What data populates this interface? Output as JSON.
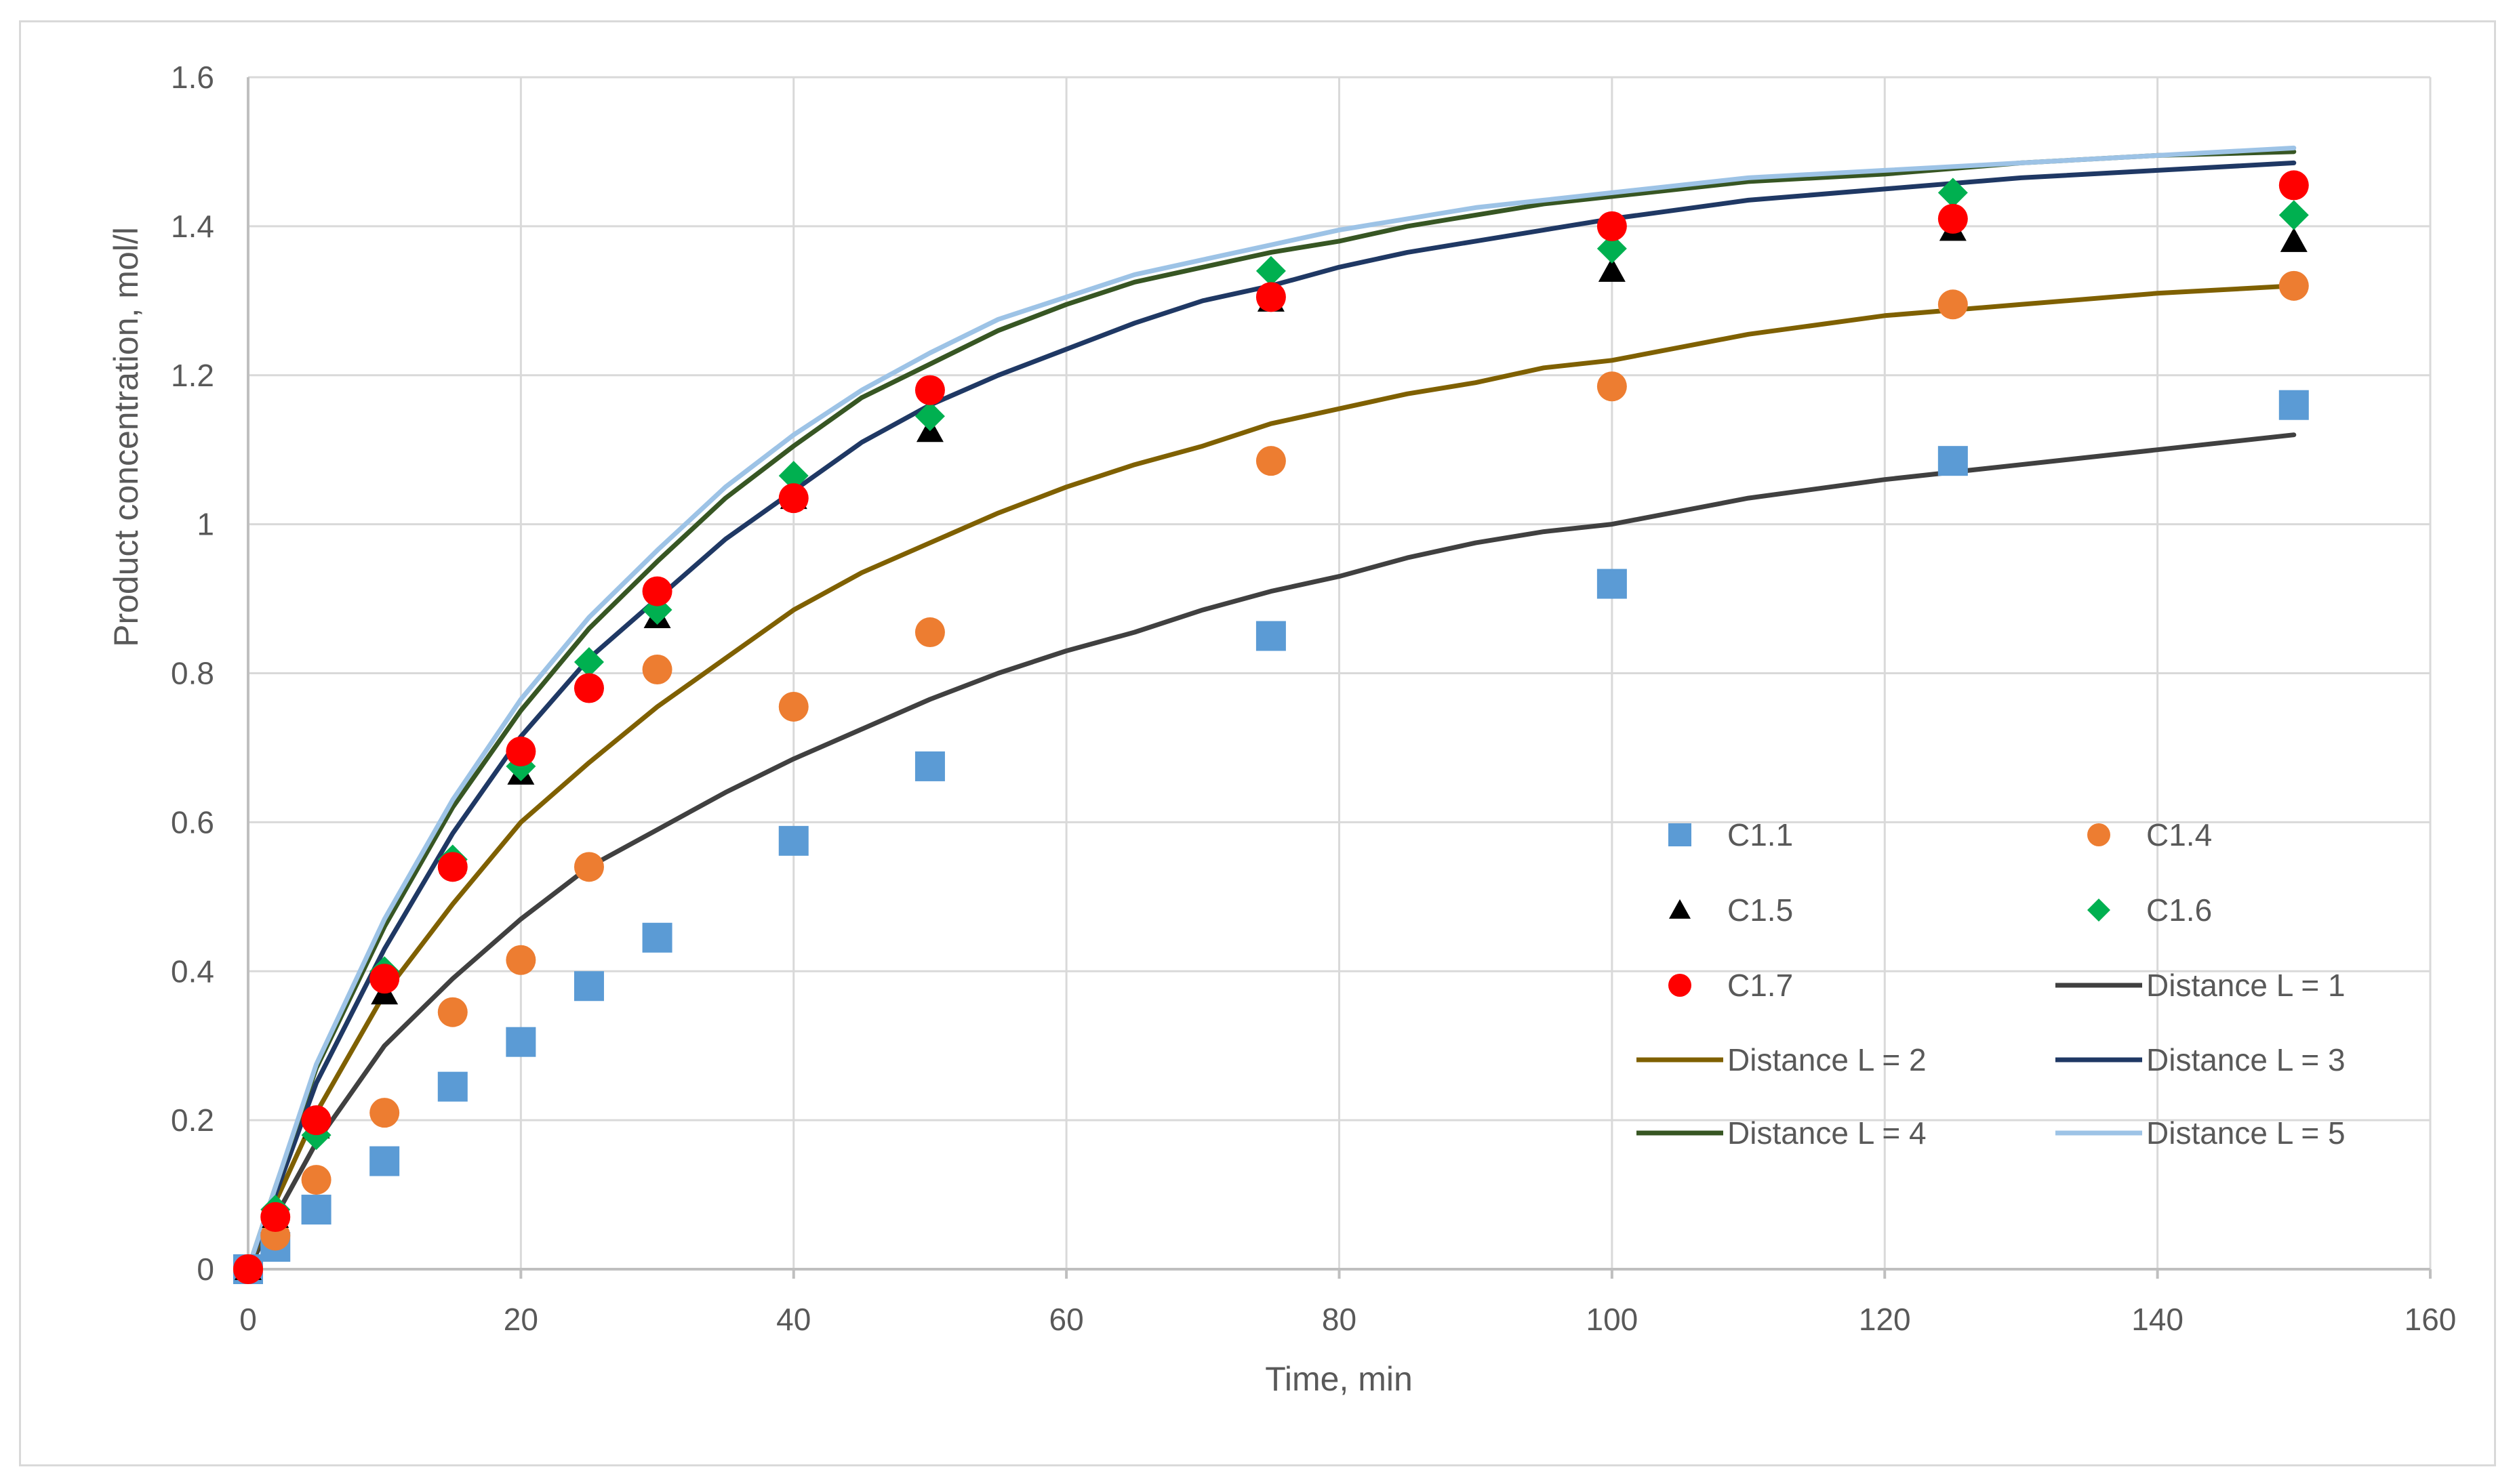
{
  "chart_data": {
    "type": "scatter",
    "title": "",
    "xlabel": "Time, min",
    "ylabel": "Product concentration, mol/l",
    "xlim": [
      0,
      160
    ],
    "ylim": [
      0,
      1.6
    ],
    "x_ticks": [
      "0",
      "20",
      "40",
      "60",
      "80",
      "100",
      "120",
      "140",
      "160"
    ],
    "y_ticks": [
      "0",
      "0.2",
      "0.4",
      "0.6",
      "0.8",
      "1",
      "1.2",
      "1.4",
      "1.6"
    ],
    "grid": true,
    "legend_position": "lower-right",
    "colors": {
      "C1.1": "#5b9bd5",
      "C1.4": "#ed7d31",
      "C1.5": "#000000",
      "C1.6": "#00b050",
      "C1.7": "#ff0000",
      "Distance L = 1": "#404040",
      "Distance L = 2": "#7f6000",
      "Distance L = 3": "#1f3864",
      "Distance L = 4": "#375623",
      "Distance L = 5": "#9dc3e6"
    },
    "x_points": [
      0,
      2,
      5,
      10,
      15,
      20,
      25,
      30,
      40,
      50,
      75,
      100,
      125,
      150
    ],
    "series_points": [
      {
        "name": "C1.1",
        "marker": "square",
        "values": [
          0,
          0.03,
          0.08,
          0.145,
          0.245,
          0.305,
          0.38,
          0.445,
          0.575,
          0.675,
          0.85,
          0.92,
          1.085,
          1.16
        ]
      },
      {
        "name": "C1.4",
        "marker": "circle",
        "values": [
          0,
          0.045,
          0.12,
          0.21,
          0.345,
          0.415,
          0.54,
          0.805,
          0.755,
          0.855,
          1.085,
          1.185,
          1.295,
          1.32
        ]
      },
      {
        "name": "C1.5",
        "marker": "triangle",
        "values": [
          0,
          0.07,
          0.19,
          0.37,
          0.545,
          0.665,
          0.785,
          0.875,
          1.035,
          1.125,
          1.3,
          1.34,
          1.395,
          1.38
        ]
      },
      {
        "name": "C1.6",
        "marker": "diamond",
        "values": [
          0,
          0.08,
          0.18,
          0.4,
          0.55,
          0.675,
          0.815,
          0.885,
          1.065,
          1.145,
          1.34,
          1.37,
          1.445,
          1.415
        ]
      },
      {
        "name": "C1.7",
        "marker": "circle",
        "values": [
          0,
          0.07,
          0.2,
          0.39,
          0.54,
          0.695,
          0.78,
          0.91,
          1.035,
          1.18,
          1.305,
          1.4,
          1.41,
          1.455
        ]
      }
    ],
    "x_curve": [
      0,
      2,
      5,
      10,
      15,
      20,
      25,
      30,
      35,
      40,
      45,
      50,
      55,
      60,
      65,
      70,
      75,
      80,
      85,
      90,
      95,
      100,
      110,
      120,
      130,
      140,
      150
    ],
    "series_lines": [
      {
        "name": "Distance L = 1",
        "values": [
          0,
          0.07,
          0.17,
          0.3,
          0.39,
          0.47,
          0.54,
          0.59,
          0.64,
          0.685,
          0.725,
          0.765,
          0.8,
          0.83,
          0.855,
          0.885,
          0.91,
          0.93,
          0.955,
          0.975,
          0.99,
          1.0,
          1.035,
          1.06,
          1.08,
          1.1,
          1.12
        ]
      },
      {
        "name": "Distance L = 2",
        "values": [
          0,
          0.09,
          0.21,
          0.37,
          0.49,
          0.6,
          0.68,
          0.755,
          0.82,
          0.885,
          0.935,
          0.975,
          1.015,
          1.05,
          1.08,
          1.105,
          1.135,
          1.155,
          1.175,
          1.19,
          1.21,
          1.22,
          1.255,
          1.28,
          1.295,
          1.31,
          1.32
        ]
      },
      {
        "name": "Distance L = 3",
        "values": [
          0,
          0.1,
          0.25,
          0.43,
          0.585,
          0.715,
          0.82,
          0.9,
          0.98,
          1.045,
          1.11,
          1.16,
          1.2,
          1.235,
          1.27,
          1.3,
          1.32,
          1.345,
          1.365,
          1.38,
          1.395,
          1.41,
          1.435,
          1.45,
          1.465,
          1.475,
          1.485
        ]
      },
      {
        "name": "Distance L = 4",
        "values": [
          0,
          0.11,
          0.27,
          0.46,
          0.62,
          0.75,
          0.86,
          0.95,
          1.035,
          1.105,
          1.17,
          1.215,
          1.26,
          1.295,
          1.325,
          1.345,
          1.365,
          1.38,
          1.4,
          1.415,
          1.43,
          1.44,
          1.46,
          1.47,
          1.485,
          1.495,
          1.5
        ]
      },
      {
        "name": "Distance L = 5",
        "values": [
          0,
          0.11,
          0.275,
          0.47,
          0.63,
          0.765,
          0.875,
          0.965,
          1.05,
          1.12,
          1.18,
          1.23,
          1.275,
          1.305,
          1.335,
          1.355,
          1.375,
          1.395,
          1.41,
          1.425,
          1.435,
          1.445,
          1.465,
          1.475,
          1.485,
          1.495,
          1.505
        ]
      }
    ],
    "legend": [
      "C1.1",
      "C1.4",
      "C1.5",
      "C1.6",
      "C1.7",
      "Distance L = 1",
      "Distance L = 2",
      "Distance L = 3",
      "Distance L = 4",
      "Distance L = 5"
    ]
  }
}
